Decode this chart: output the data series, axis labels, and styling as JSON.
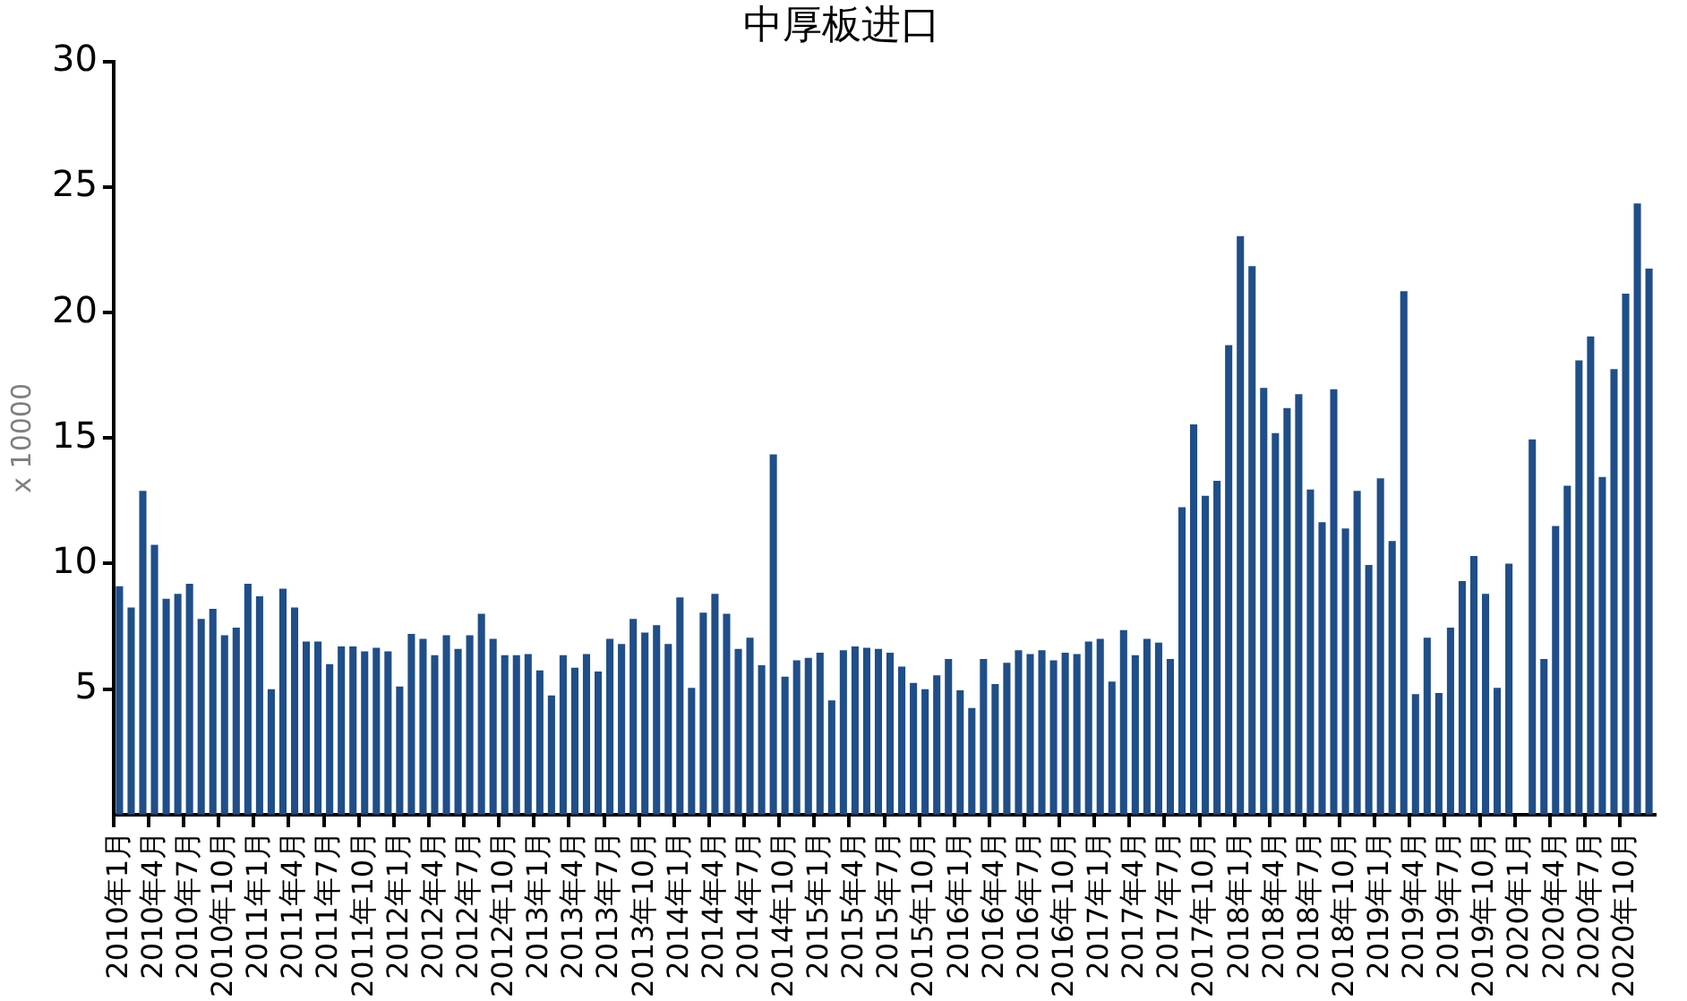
{
  "chart_data": {
    "type": "bar",
    "title": "中厚板进口",
    "ylabel": "x 10000",
    "categories": [
      "2010年1月",
      null,
      null,
      "2010年4月",
      null,
      null,
      "2010年7月",
      null,
      null,
      "2010年10月",
      null,
      null,
      "2011年1月",
      null,
      null,
      "2011年4月",
      null,
      null,
      "2011年7月",
      null,
      null,
      "2011年10月",
      null,
      null,
      "2012年1月",
      null,
      null,
      "2012年4月",
      null,
      null,
      "2012年7月",
      null,
      null,
      "2012年10月",
      null,
      null,
      "2013年1月",
      null,
      null,
      "2013年4月",
      null,
      null,
      "2013年7月",
      null,
      null,
      "2013年10月",
      null,
      null,
      "2014年1月",
      null,
      null,
      "2014年4月",
      null,
      null,
      "2014年7月",
      null,
      null,
      "2014年10月",
      null,
      null,
      "2015年1月",
      null,
      null,
      "2015年4月",
      null,
      null,
      "2015年7月",
      null,
      null,
      "2015年10月",
      null,
      null,
      "2016年1月",
      null,
      null,
      "2016年4月",
      null,
      null,
      "2016年7月",
      null,
      null,
      "2016年10月",
      null,
      null,
      "2017年1月",
      null,
      null,
      "2017年4月",
      null,
      null,
      "2017年7月",
      null,
      null,
      "2017年10月",
      null,
      null,
      "2018年1月",
      null,
      null,
      "2018年4月",
      null,
      null,
      "2018年7月",
      null,
      null,
      "2018年10月",
      null,
      null,
      "2019年1月",
      null,
      null,
      "2019年4月",
      null,
      null,
      "2019年7月",
      null,
      null,
      "2019年10月",
      null,
      null,
      "2020年1月",
      null,
      null,
      "2020年4月",
      null,
      null,
      "2020年7月",
      null,
      null,
      "2020年10月",
      null,
      null
    ],
    "values": [
      9.1,
      8.25,
      12.9,
      10.75,
      8.6,
      8.8,
      9.2,
      7.8,
      8.2,
      7.15,
      7.45,
      9.2,
      8.7,
      5.0,
      9.0,
      8.25,
      6.9,
      6.9,
      6.0,
      6.7,
      6.7,
      6.5,
      6.65,
      6.5,
      5.1,
      7.2,
      7.0,
      6.35,
      7.15,
      6.6,
      7.15,
      8.0,
      7.0,
      6.35,
      6.35,
      6.4,
      5.75,
      4.75,
      6.35,
      5.85,
      6.4,
      5.7,
      7.0,
      6.8,
      7.8,
      7.25,
      7.55,
      6.8,
      8.65,
      5.05,
      8.05,
      8.8,
      8.0,
      6.6,
      7.05,
      5.95,
      14.35,
      5.5,
      6.15,
      6.25,
      6.45,
      4.55,
      6.55,
      6.7,
      6.65,
      6.6,
      6.45,
      5.9,
      5.25,
      5.0,
      5.55,
      6.2,
      4.95,
      4.25,
      6.2,
      5.2,
      6.05,
      6.55,
      6.4,
      6.55,
      6.15,
      6.45,
      6.4,
      6.9,
      7.0,
      5.3,
      7.35,
      6.35,
      7.0,
      6.85,
      6.2,
      12.25,
      15.55,
      12.7,
      13.3,
      18.7,
      23.05,
      21.85,
      17.0,
      15.2,
      16.2,
      16.75,
      12.95,
      11.65,
      16.95,
      11.4,
      12.9,
      9.95,
      13.4,
      10.9,
      20.85,
      4.8,
      7.05,
      4.85,
      7.45,
      9.3,
      10.3,
      8.8,
      5.05,
      10.0,
      null,
      14.95,
      6.2,
      11.5,
      13.1,
      18.1,
      19.05,
      13.45,
      17.75,
      20.75,
      24.35,
      21.75
    ],
    "color": "#1f4e89",
    "ylim": [
      0,
      30
    ],
    "yticks": [
      5,
      10,
      15,
      20,
      25,
      30
    ],
    "grid": false,
    "legend": false
  }
}
